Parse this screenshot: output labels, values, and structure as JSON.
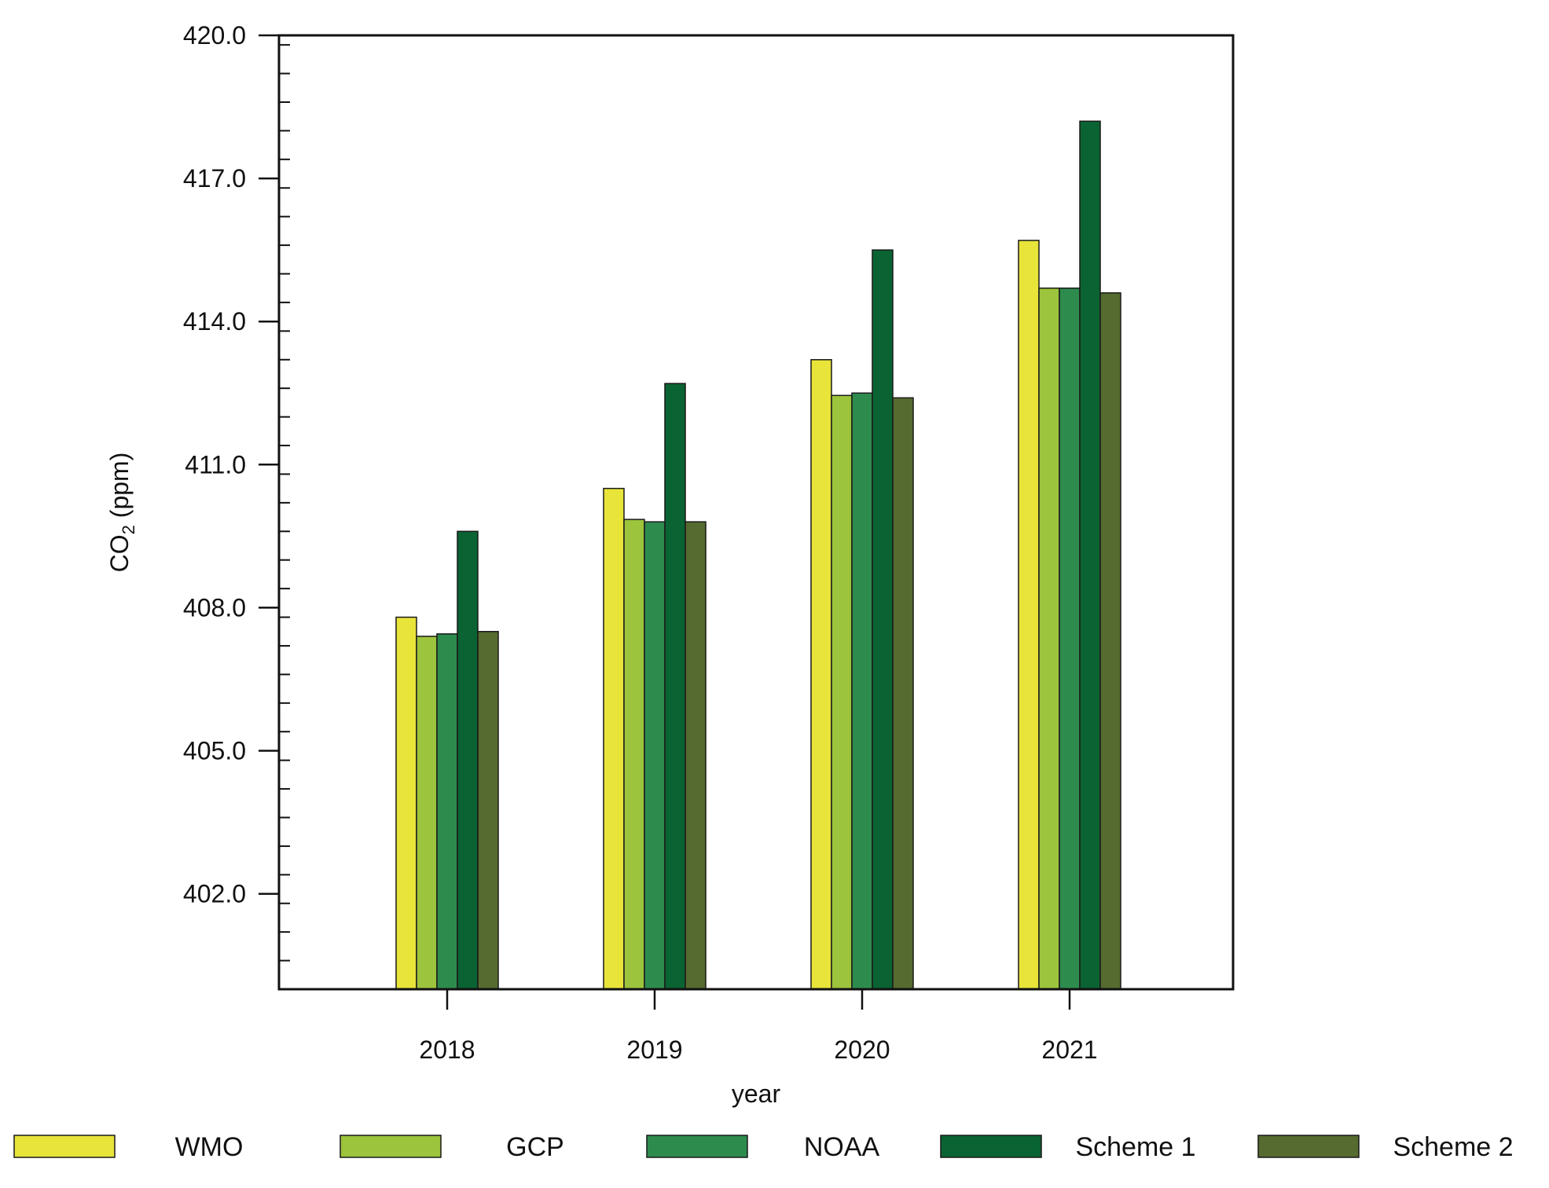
{
  "chart_data": {
    "type": "bar",
    "title": "",
    "xlabel": "year",
    "ylabel_main": "CO",
    "ylabel_sub": "2",
    "ylabel_unit": " (ppm)",
    "ylim": [
      400.0,
      420.0
    ],
    "yticks": [
      "402.0",
      "405.0",
      "408.0",
      "411.0",
      "414.0",
      "417.0",
      "420.0"
    ],
    "ytick_values": [
      402.0,
      405.0,
      408.0,
      411.0,
      414.0,
      417.0,
      420.0
    ],
    "categories": [
      "2018",
      "2019",
      "2020",
      "2021"
    ],
    "series": [
      {
        "name": "WMO",
        "color": "#e8e43a",
        "values": [
          407.8,
          410.5,
          413.2,
          415.7
        ]
      },
      {
        "name": "GCP",
        "color": "#9cc43c",
        "values": [
          407.4,
          409.85,
          412.45,
          414.7
        ]
      },
      {
        "name": "NOAA",
        "color": "#2e8b4e",
        "values": [
          407.45,
          409.8,
          412.5,
          414.7
        ]
      },
      {
        "name": "Scheme 1",
        "color": "#0a6332",
        "values": [
          409.6,
          412.7,
          415.5,
          418.2
        ]
      },
      {
        "name": "Scheme 2",
        "color": "#556b2f",
        "values": [
          407.5,
          409.8,
          412.4,
          414.6
        ]
      }
    ],
    "legend_position": "bottom",
    "grid": false
  }
}
